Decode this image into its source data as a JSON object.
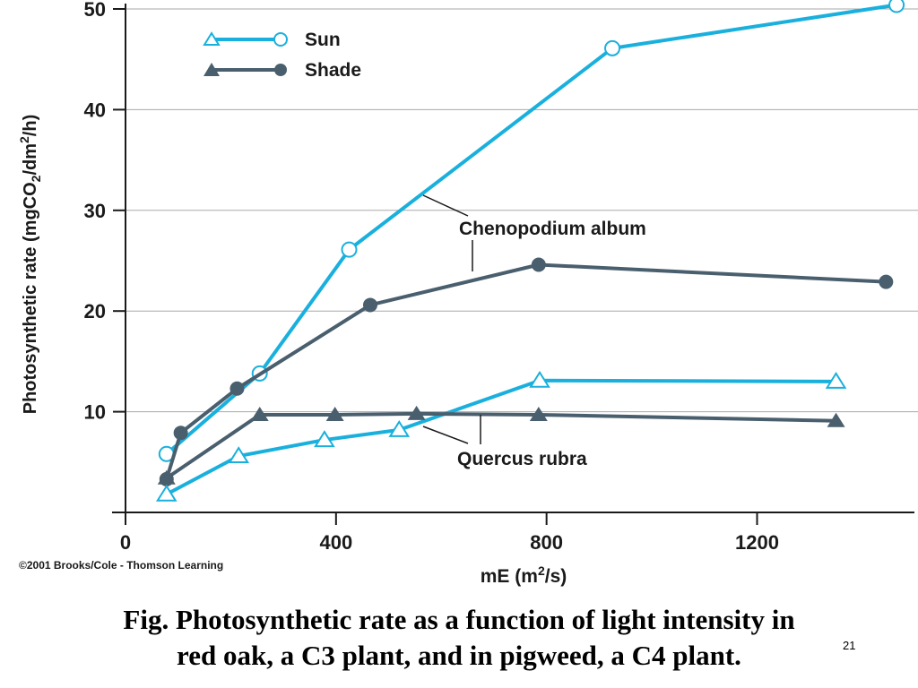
{
  "colors": {
    "sun": "#1ab0dd",
    "shade": "#4a5f6e",
    "axis": "#1a1a1a",
    "grid": "#a8a8a8"
  },
  "copyright": "©2001 Brooks/Cole - Thomson Learning",
  "caption": {
    "line1": "Fig. Photosynthetic rate as a function of light intensity in",
    "line2": "red oak, a C3 plant, and in pigweed, a C4 plant."
  },
  "slide_number": "21",
  "chart_data": {
    "type": "line",
    "ylabel": "Photosynthetic rate (mgCO2/dm2/h)",
    "xlabel": "mE (m2/s)",
    "xlim": [
      0,
      1470
    ],
    "ylim": [
      0,
      50
    ],
    "x_ticks": [
      "0",
      "400",
      "800",
      "1200"
    ],
    "y_ticks": [
      "10",
      "20",
      "30",
      "40",
      "50"
    ],
    "grid": true,
    "legend": {
      "position": "top-left",
      "entries": [
        "Sun",
        "Shade"
      ]
    },
    "annotations": [
      "Chenopodium album",
      "Quercus rubra"
    ],
    "series": [
      {
        "group": "Chenopodium album",
        "name": "Sun",
        "marker": "circle-open",
        "x": [
          78,
          255,
          425,
          925,
          1465
        ],
        "y": [
          5.8,
          13.8,
          26.1,
          46.1,
          50.4
        ]
      },
      {
        "group": "Chenopodium album",
        "name": "Shade",
        "marker": "circle-filled",
        "x": [
          78,
          105,
          212,
          465,
          785,
          1445
        ],
        "y": [
          3.3,
          7.9,
          12.3,
          20.6,
          24.6,
          22.9
        ]
      },
      {
        "group": "Quercus rubra",
        "name": "Sun",
        "marker": "triangle-open",
        "x": [
          78,
          215,
          378,
          520,
          787,
          1350
        ],
        "y": [
          1.8,
          5.6,
          7.2,
          8.2,
          13.1,
          13.0
        ]
      },
      {
        "group": "Quercus rubra",
        "name": "Shade",
        "marker": "triangle-filled",
        "x": [
          78,
          255,
          398,
          553,
          785,
          1350
        ],
        "y": [
          3.4,
          9.7,
          9.7,
          9.8,
          9.7,
          9.1
        ]
      }
    ]
  }
}
